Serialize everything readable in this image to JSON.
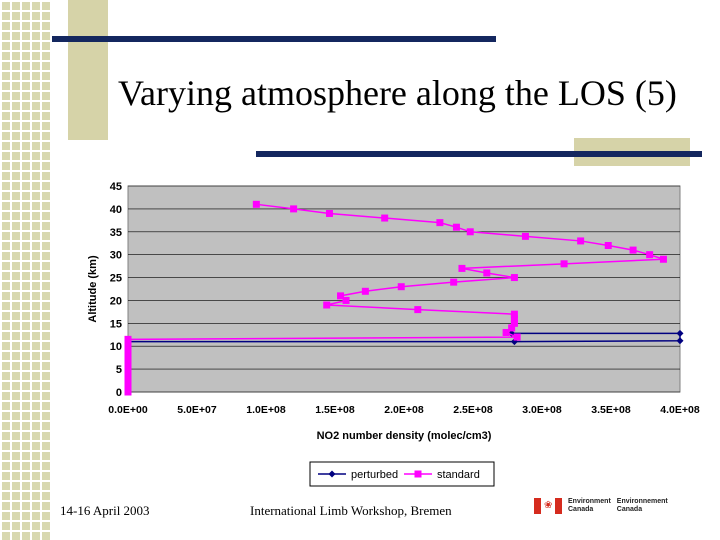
{
  "slide": {
    "title": "Varying atmosphere along the LOS (5)",
    "footer_left": "14-16 April 2003",
    "footer_center": "International Limb Workshop, Bremen",
    "logo_en_1": "Environment",
    "logo_en_2": "Canada",
    "logo_fr_1": "Environnement",
    "logo_fr_2": "Canada"
  },
  "colors": {
    "plot_bg": "#c0c0c0",
    "perturbed": "#000080",
    "standard": "#ff00ff",
    "bar": "#14275f"
  },
  "chart_data": {
    "type": "line",
    "xlabel": "NO2 number density (molec/cm3)",
    "ylabel": "Altitude (km)",
    "xlim": [
      0,
      400000000
    ],
    "ylim": [
      0,
      45
    ],
    "xticks": [
      "0.0E+00",
      "5.0E+07",
      "1.0E+08",
      "1.5E+08",
      "2.0E+08",
      "2.5E+08",
      "3.0E+08",
      "3.5E+08",
      "4.0E+08"
    ],
    "yticks": [
      "0",
      "5",
      "10",
      "15",
      "20",
      "25",
      "30",
      "35",
      "40",
      "45"
    ],
    "legend": [
      "perturbed",
      "standard"
    ],
    "legend_position": "bottom",
    "series": [
      {
        "name": "perturbed",
        "points": [
          [
            0,
            0
          ],
          [
            0,
            1
          ],
          [
            0,
            2
          ],
          [
            0,
            3
          ],
          [
            0,
            4
          ],
          [
            0,
            5
          ],
          [
            0,
            6
          ],
          [
            0,
            7
          ],
          [
            0,
            8
          ],
          [
            0,
            9
          ],
          [
            0,
            10
          ],
          [
            0,
            11
          ],
          [
            280000000,
            11
          ],
          [
            400000000,
            11.2
          ],
          [
            400000000,
            12.8
          ],
          [
            278000000,
            12.8
          ]
        ]
      },
      {
        "name": "standard",
        "points": [
          [
            93000000,
            41
          ],
          [
            120000000,
            40
          ],
          [
            146000000,
            39
          ],
          [
            186000000,
            38
          ],
          [
            226000000,
            37
          ],
          [
            238000000,
            36
          ],
          [
            248000000,
            35
          ],
          [
            288000000,
            34
          ],
          [
            328000000,
            33
          ],
          [
            348000000,
            32
          ],
          [
            366000000,
            31
          ],
          [
            378000000,
            30
          ],
          [
            388000000,
            29
          ],
          [
            316000000,
            28
          ],
          [
            242000000,
            27
          ],
          [
            260000000,
            26
          ],
          [
            280000000,
            25
          ],
          [
            236000000,
            24
          ],
          [
            198000000,
            23
          ],
          [
            172000000,
            22
          ],
          [
            154000000,
            21
          ],
          [
            158000000,
            20
          ],
          [
            144000000,
            19
          ],
          [
            210000000,
            18
          ],
          [
            280000000,
            17
          ],
          [
            280000000,
            16
          ],
          [
            280000000,
            15
          ],
          [
            278000000,
            14
          ],
          [
            274000000,
            13
          ],
          [
            282000000,
            12
          ],
          [
            0,
            11.5
          ],
          [
            0,
            11
          ],
          [
            0,
            10
          ],
          [
            0,
            9
          ],
          [
            0,
            8
          ],
          [
            0,
            7
          ],
          [
            0,
            6
          ],
          [
            0,
            5
          ],
          [
            0,
            4
          ],
          [
            0,
            3
          ],
          [
            0,
            2
          ],
          [
            0,
            1
          ],
          [
            0,
            0
          ]
        ]
      }
    ]
  }
}
